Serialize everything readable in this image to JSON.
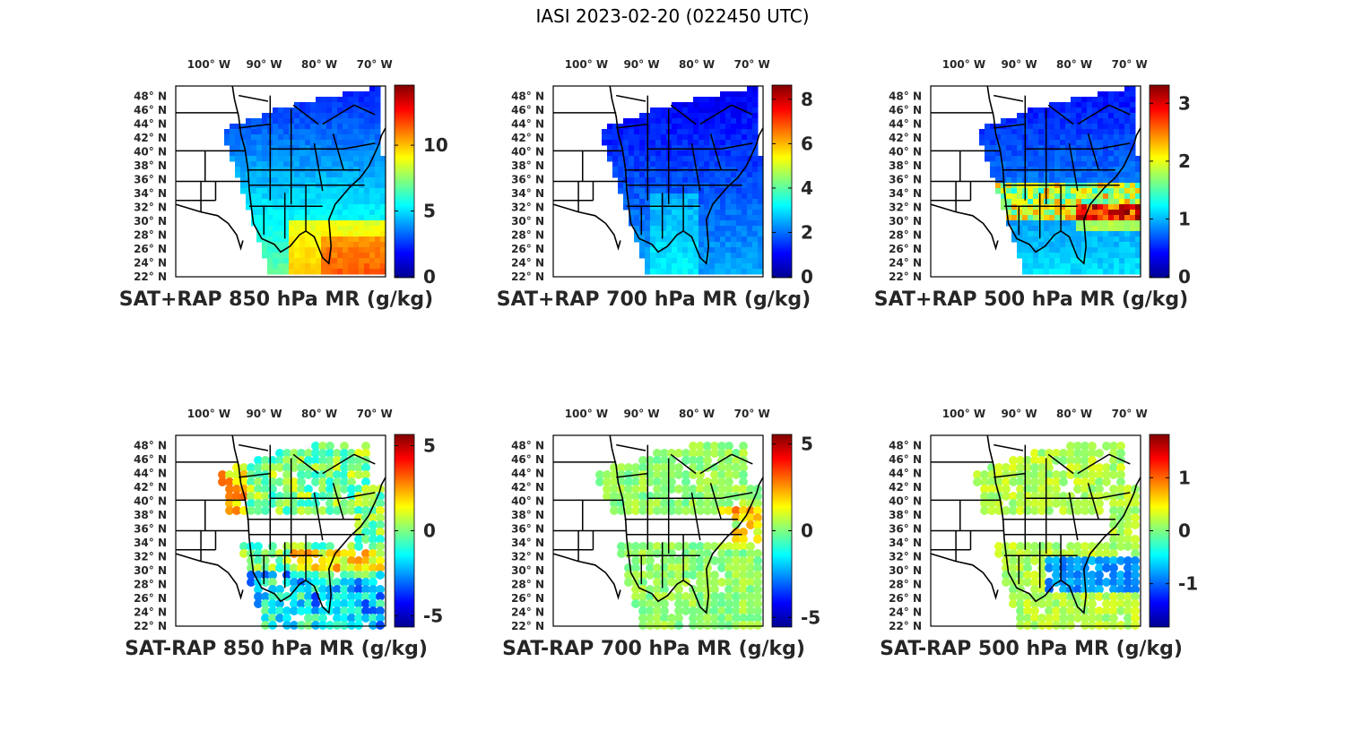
{
  "figure_title": "IASI 2023-02-20 (022450 UTC)",
  "colors": {
    "frame": "#000000",
    "text": "#262626",
    "colormap": "jet"
  },
  "chart_data": [
    {
      "type": "heatmap",
      "title": "SAT+RAP 850 hPa MR (g/kg)",
      "x_ticks": [
        "100° W",
        "90° W",
        "80° W",
        "70° W"
      ],
      "x_tick_values": [
        -100,
        -90,
        -80,
        -70
      ],
      "y_ticks": [
        "48° N",
        "46° N",
        "44° N",
        "42° N",
        "40° N",
        "38° N",
        "36° N",
        "34° N",
        "32° N",
        "30° N",
        "28° N",
        "26° N",
        "24° N",
        "22° N"
      ],
      "y_tick_values": [
        48,
        46,
        44,
        42,
        40,
        38,
        36,
        34,
        32,
        30,
        28,
        26,
        24,
        22
      ],
      "lon_range": [
        -106,
        -68
      ],
      "lat_range": [
        22,
        49.5
      ],
      "colorbar": {
        "range": [
          0,
          14.5
        ],
        "ticks": [
          0,
          5,
          10
        ],
        "tick_labels": [
          "0",
          "5",
          "10"
        ]
      }
    },
    {
      "type": "heatmap",
      "title": "SAT+RAP 700 hPa MR (g/kg)",
      "x_ticks": [
        "100° W",
        "90° W",
        "80° W",
        "70° W"
      ],
      "x_tick_values": [
        -100,
        -90,
        -80,
        -70
      ],
      "y_ticks": [
        "48° N",
        "46° N",
        "44° N",
        "42° N",
        "40° N",
        "38° N",
        "36° N",
        "34° N",
        "32° N",
        "30° N",
        "28° N",
        "26° N",
        "24° N",
        "22° N"
      ],
      "y_tick_values": [
        48,
        46,
        44,
        42,
        40,
        38,
        36,
        34,
        32,
        30,
        28,
        26,
        24,
        22
      ],
      "lon_range": [
        -106,
        -68
      ],
      "lat_range": [
        22,
        49.5
      ],
      "colorbar": {
        "range": [
          0,
          8.6
        ],
        "ticks": [
          0,
          2,
          4,
          6,
          8
        ],
        "tick_labels": [
          "0",
          "2",
          "4",
          "6",
          "8"
        ]
      }
    },
    {
      "type": "heatmap",
      "title": "SAT+RAP 500 hPa MR (g/kg)",
      "x_ticks": [
        "100° W",
        "90° W",
        "80° W",
        "70° W"
      ],
      "x_tick_values": [
        -100,
        -90,
        -80,
        -70
      ],
      "y_ticks": [
        "48° N",
        "46° N",
        "44° N",
        "42° N",
        "40° N",
        "38° N",
        "36° N",
        "34° N",
        "32° N",
        "30° N",
        "28° N",
        "26° N",
        "24° N",
        "22° N"
      ],
      "y_tick_values": [
        48,
        46,
        44,
        42,
        40,
        38,
        36,
        34,
        32,
        30,
        28,
        26,
        24,
        22
      ],
      "lon_range": [
        -106,
        -68
      ],
      "lat_range": [
        22,
        49.5
      ],
      "colorbar": {
        "range": [
          0,
          3.3
        ],
        "ticks": [
          0,
          1,
          2,
          3
        ],
        "tick_labels": [
          "0",
          "1",
          "2",
          "3"
        ]
      }
    },
    {
      "type": "heatmap",
      "title": "SAT-RAP 850 hPa MR (g/kg)",
      "x_ticks": [
        "100° W",
        "90° W",
        "80° W",
        "70° W"
      ],
      "x_tick_values": [
        -100,
        -90,
        -80,
        -70
      ],
      "y_ticks": [
        "48° N",
        "46° N",
        "44° N",
        "42° N",
        "40° N",
        "38° N",
        "36° N",
        "34° N",
        "32° N",
        "30° N",
        "28° N",
        "26° N",
        "24° N",
        "22° N"
      ],
      "y_tick_values": [
        48,
        46,
        44,
        42,
        40,
        38,
        36,
        34,
        32,
        30,
        28,
        26,
        24,
        22
      ],
      "lon_range": [
        -106,
        -68
      ],
      "lat_range": [
        22,
        49.5
      ],
      "colorbar": {
        "range": [
          -5.6,
          5.6
        ],
        "ticks": [
          -5,
          0,
          5
        ],
        "tick_labels": [
          "-5",
          "0",
          "5"
        ]
      }
    },
    {
      "type": "heatmap",
      "title": "SAT-RAP 700 hPa MR (g/kg)",
      "x_ticks": [
        "100° W",
        "90° W",
        "80° W",
        "70° W"
      ],
      "x_tick_values": [
        -100,
        -90,
        -80,
        -70
      ],
      "y_ticks": [
        "48° N",
        "46° N",
        "44° N",
        "42° N",
        "40° N",
        "38° N",
        "36° N",
        "34° N",
        "32° N",
        "30° N",
        "28° N",
        "26° N",
        "24° N",
        "22° N"
      ],
      "y_tick_values": [
        48,
        46,
        44,
        42,
        40,
        38,
        36,
        34,
        32,
        30,
        28,
        26,
        24,
        22
      ],
      "lon_range": [
        -106,
        -68
      ],
      "lat_range": [
        22,
        49.5
      ],
      "colorbar": {
        "range": [
          -5.5,
          5.5
        ],
        "ticks": [
          -5,
          0,
          5
        ],
        "tick_labels": [
          "-5",
          "0",
          "5"
        ]
      }
    },
    {
      "type": "heatmap",
      "title": "SAT-RAP 500 hPa MR (g/kg)",
      "x_ticks": [
        "100° W",
        "90° W",
        "80° W",
        "70° W"
      ],
      "x_tick_values": [
        -100,
        -90,
        -80,
        -70
      ],
      "y_ticks": [
        "48° N",
        "46° N",
        "44° N",
        "42° N",
        "40° N",
        "38° N",
        "36° N",
        "34° N",
        "32° N",
        "30° N",
        "28° N",
        "26° N",
        "24° N",
        "22° N"
      ],
      "y_tick_values": [
        48,
        46,
        44,
        42,
        40,
        38,
        36,
        34,
        32,
        30,
        28,
        26,
        24,
        22
      ],
      "lon_range": [
        -106,
        -68
      ],
      "lat_range": [
        22,
        49.5
      ],
      "colorbar": {
        "range": [
          -1.8,
          1.8
        ],
        "ticks": [
          -1,
          0,
          1
        ],
        "tick_labels": [
          "-1",
          "0",
          "1"
        ]
      }
    }
  ]
}
